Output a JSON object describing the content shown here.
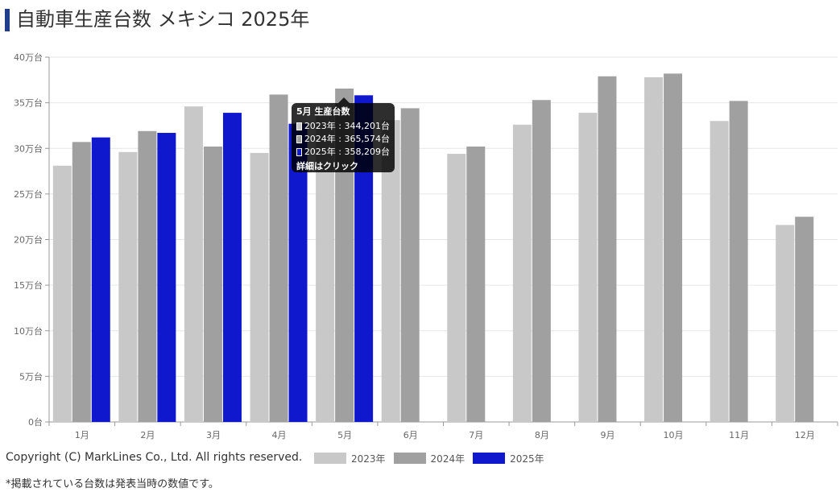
{
  "page": {
    "title": "自動車生産台数 メキシコ 2025年",
    "copyright": "Copyright (C) MarkLines Co., Ltd. All rights reserved.",
    "note": "*掲載されている台数は発表当時の数値です。"
  },
  "tooltip": {
    "title": "5月 生産台数",
    "rows": [
      {
        "label": "2023年 : 344,201台",
        "color": "#c8c8c8"
      },
      {
        "label": "2024年 : 365,574台",
        "color": "#a0a0a0"
      },
      {
        "label": "2025年 : 358,209台",
        "color": "#0f18cc"
      }
    ],
    "footer": "詳細はクリック"
  },
  "chart_data": {
    "type": "bar",
    "categories": [
      "1月",
      "2月",
      "3月",
      "4月",
      "5月",
      "6月",
      "7月",
      "8月",
      "9月",
      "10月",
      "11月",
      "12月"
    ],
    "series": [
      {
        "name": "2023年",
        "color": "#c8c8c8",
        "values": [
          281000,
          296000,
          346000,
          295000,
          344201,
          331000,
          294000,
          326000,
          339000,
          378000,
          330000,
          216000
        ]
      },
      {
        "name": "2024年",
        "color": "#a0a0a0",
        "values": [
          307000,
          319000,
          302000,
          359000,
          365574,
          344000,
          302000,
          353000,
          379000,
          382000,
          352000,
          225000
        ]
      },
      {
        "name": "2025年",
        "color": "#0f18cc",
        "values": [
          312000,
          317000,
          339000,
          327000,
          358209,
          null,
          null,
          null,
          null,
          null,
          null,
          null
        ]
      }
    ],
    "y_ticks": [
      "0台",
      "5万台",
      "10万台",
      "15万台",
      "20万台",
      "25万台",
      "30万台",
      "35万台",
      "40万台"
    ],
    "ylim": [
      0,
      400000
    ],
    "grid": true,
    "legend_position": "bottom"
  }
}
